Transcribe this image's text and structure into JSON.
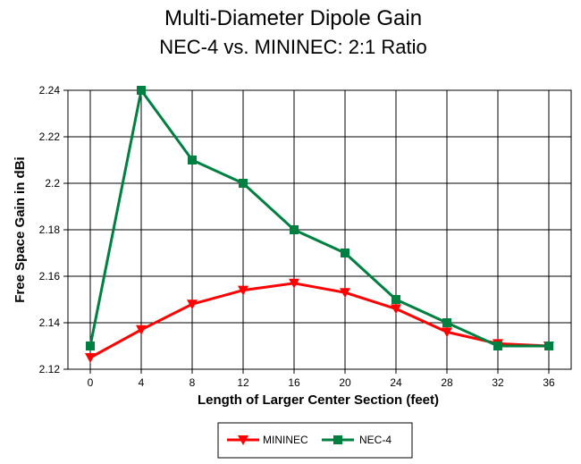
{
  "chart_data": {
    "type": "line",
    "title": "Multi-Diameter Dipole Gain",
    "subtitle": "NEC-4 vs. MININEC: 2:1 Ratio",
    "xlabel": "Length of Larger Center Section (feet)",
    "ylabel": "Free Space Gain in dBi",
    "x": [
      0,
      4,
      8,
      12,
      16,
      20,
      24,
      28,
      32,
      36
    ],
    "x_ticks": [
      "0",
      "4",
      "8",
      "12",
      "16",
      "20",
      "24",
      "28",
      "32",
      "36"
    ],
    "y_ticks": [
      "2.12",
      "2.14",
      "2.16",
      "2.18",
      "2.2",
      "2.22",
      "2.24"
    ],
    "ylim": [
      2.12,
      2.24
    ],
    "grid": true,
    "legend_position": "bottom-center",
    "series": [
      {
        "name": "MININEC",
        "color": "#ff0000",
        "marker": "triangle-down",
        "values": [
          2.125,
          2.137,
          2.148,
          2.154,
          2.157,
          2.153,
          2.146,
          2.136,
          2.131,
          2.13
        ]
      },
      {
        "name": "NEC-4",
        "color": "#008040",
        "marker": "square",
        "values": [
          2.13,
          2.24,
          2.21,
          2.2,
          2.18,
          2.17,
          2.15,
          2.14,
          2.13,
          2.13
        ]
      }
    ]
  }
}
